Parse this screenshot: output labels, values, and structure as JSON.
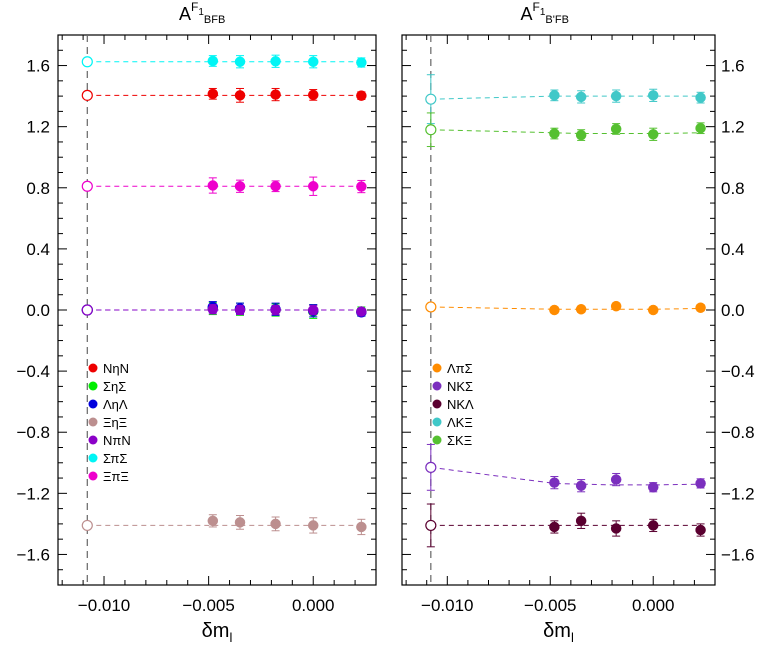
{
  "chart_data": [
    {
      "type": "scatter",
      "title": {
        "main": "A",
        "sup": "F",
        "sup_sub": "1",
        "sub": "BFB"
      },
      "xlabel": {
        "main": "δm",
        "sub": "l"
      },
      "xlim": [
        -0.0122,
        0.003
      ],
      "ylim": [
        -1.8,
        1.8
      ],
      "x_ticks": [
        -0.01,
        -0.005,
        0.0
      ],
      "x_tick_labels": [
        "-0.010",
        "-0.005",
        "0.000"
      ],
      "y_ticks": [
        -1.6,
        -1.2,
        -0.8,
        -0.4,
        0.0,
        0.4,
        0.8,
        1.2,
        1.6
      ],
      "y_tick_labels": [
        "−1.6",
        "−1.2",
        "−0.8",
        "−0.4",
        "0.0",
        "0.4",
        "0.8",
        "1.2",
        "1.6"
      ],
      "y_labels_side": "left",
      "vline_x": -0.0108,
      "legend_position": "bottom-left",
      "x": [
        -0.0048,
        -0.0035,
        -0.0018,
        0.0,
        0.0023
      ],
      "series": [
        {
          "name": "NηN",
          "color": "#ee0000",
          "values": [
            1.415,
            1.405,
            1.41,
            1.408,
            1.403
          ],
          "err": [
            0.035,
            0.045,
            0.04,
            0.035,
            0.025
          ],
          "fit": [
            1.405,
            1.405,
            1.405,
            1.405,
            1.405
          ],
          "extrap": {
            "value": 1.405,
            "err": 0.02
          }
        },
        {
          "name": "ΣηΣ",
          "color": "#00ee00",
          "values": [
            0.01,
            0.005,
            0.0,
            -0.01,
            -0.01
          ],
          "err": [
            0.04,
            0.04,
            0.04,
            0.045,
            0.03
          ],
          "fit": [
            0.0,
            0.0,
            0.0,
            0.0,
            0.0
          ],
          "extrap": {
            "value": 0.0,
            "err": 0.015
          }
        },
        {
          "name": "ΛηΛ",
          "color": "#0000dd",
          "values": [
            0.02,
            0.01,
            0.005,
            -0.005,
            -0.015
          ],
          "err": [
            0.035,
            0.035,
            0.04,
            0.04,
            0.025
          ],
          "fit": [
            0.0,
            0.0,
            0.0,
            0.0,
            0.0
          ],
          "extrap": {
            "value": 0.0,
            "err": 0.015
          }
        },
        {
          "name": "ΞηΞ",
          "color": "#bc8f8f",
          "values": [
            -1.38,
            -1.39,
            -1.4,
            -1.41,
            -1.42
          ],
          "err": [
            0.04,
            0.045,
            0.045,
            0.05,
            0.05
          ],
          "fit": [
            -1.41,
            -1.41,
            -1.41,
            -1.41,
            -1.41
          ],
          "extrap": {
            "value": -1.41,
            "err": 0.02
          }
        },
        {
          "name": "NπN",
          "color": "#8b00c8",
          "values": [
            0.005,
            0.0,
            0.0,
            0.0,
            -0.01
          ],
          "err": [
            0.03,
            0.03,
            0.03,
            0.03,
            0.02
          ],
          "fit": [
            0.0,
            0.0,
            0.0,
            0.0,
            0.0
          ],
          "extrap": {
            "value": 0.0,
            "err": 0.01
          }
        },
        {
          "name": "ΣπΣ",
          "color": "#00f5f5",
          "values": [
            1.63,
            1.625,
            1.628,
            1.625,
            1.62
          ],
          "err": [
            0.035,
            0.04,
            0.04,
            0.04,
            0.03
          ],
          "fit": [
            1.625,
            1.625,
            1.625,
            1.625,
            1.625
          ],
          "extrap": {
            "value": 1.625,
            "err": 0.02
          }
        },
        {
          "name": "ΞπΞ",
          "color": "#ee00cc",
          "values": [
            0.815,
            0.81,
            0.81,
            0.81,
            0.808
          ],
          "err": [
            0.05,
            0.04,
            0.035,
            0.06,
            0.04
          ],
          "fit": [
            0.81,
            0.81,
            0.81,
            0.81,
            0.81
          ],
          "extrap": {
            "value": 0.81,
            "err": 0.02
          }
        }
      ]
    },
    {
      "type": "scatter",
      "title": {
        "main": "A",
        "sup": "F",
        "sup_sub": "1",
        "sub": "B'FB"
      },
      "xlabel": {
        "main": "δm",
        "sub": "l"
      },
      "xlim": [
        -0.0122,
        0.003
      ],
      "ylim": [
        -1.8,
        1.8
      ],
      "x_ticks": [
        -0.01,
        -0.005,
        0.0
      ],
      "x_tick_labels": [
        "-0.010",
        "-0.005",
        "0.000"
      ],
      "y_ticks": [
        -1.6,
        -1.2,
        -0.8,
        -0.4,
        0.0,
        0.4,
        0.8,
        1.2,
        1.6
      ],
      "y_tick_labels": [
        "−1.6",
        "−1.2",
        "−0.8",
        "−0.4",
        "0.0",
        "0.4",
        "0.8",
        "1.2",
        "1.6"
      ],
      "y_labels_side": "right",
      "vline_x": -0.0108,
      "legend_position": "bottom-left",
      "x": [
        -0.0048,
        -0.0035,
        -0.0018,
        0.0,
        0.0023
      ],
      "series": [
        {
          "name": "ΛπΣ",
          "color": "#ff8c00",
          "values": [
            0.0,
            0.005,
            0.025,
            0.0,
            0.015
          ],
          "err": [
            0.02,
            0.02,
            0.02,
            0.02,
            0.02
          ],
          "fit": [
            0.005,
            0.005,
            0.005,
            0.005,
            0.01
          ],
          "extrap": {
            "value": 0.02,
            "err": 0.02
          }
        },
        {
          "name": "NKΣ",
          "color": "#7b2fbe",
          "values": [
            -1.13,
            -1.15,
            -1.11,
            -1.16,
            -1.135
          ],
          "err": [
            0.04,
            0.04,
            0.04,
            0.03,
            0.03
          ],
          "fit": [
            -1.135,
            -1.14,
            -1.145,
            -1.145,
            -1.14
          ],
          "extrap": {
            "value": -1.03,
            "err": 0.15
          }
        },
        {
          "name": "NKΛ",
          "color": "#5a0030",
          "values": [
            -1.42,
            -1.38,
            -1.43,
            -1.41,
            -1.44
          ],
          "err": [
            0.04,
            0.05,
            0.05,
            0.04,
            0.04
          ],
          "fit": [
            -1.41,
            -1.41,
            -1.41,
            -1.41,
            -1.41
          ],
          "extrap": {
            "value": -1.41,
            "err": 0.14
          }
        },
        {
          "name": "ΛKΞ",
          "color": "#40c8c8",
          "values": [
            1.405,
            1.395,
            1.4,
            1.405,
            1.39
          ],
          "err": [
            0.035,
            0.04,
            0.04,
            0.04,
            0.035
          ],
          "fit": [
            1.4,
            1.4,
            1.4,
            1.4,
            1.4
          ],
          "extrap": {
            "value": 1.38,
            "err": 0.16
          }
        },
        {
          "name": "ΣKΞ",
          "color": "#55c030",
          "values": [
            1.155,
            1.145,
            1.185,
            1.15,
            1.19
          ],
          "err": [
            0.035,
            0.035,
            0.035,
            0.04,
            0.035
          ],
          "fit": [
            1.16,
            1.155,
            1.155,
            1.155,
            1.16
          ],
          "extrap": {
            "value": 1.18,
            "err": 0.11
          }
        }
      ]
    }
  ]
}
